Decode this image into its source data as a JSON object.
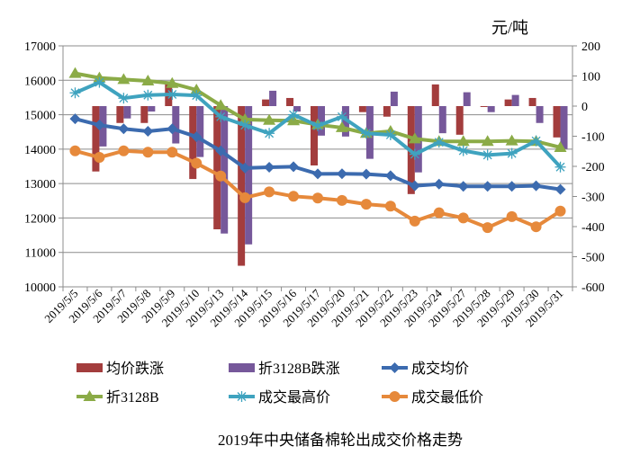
{
  "chart_data": {
    "type": "bar+line",
    "title": "2019年中央储备棉轮出成交价格走势",
    "right_axis_unit": "元/吨",
    "categories": [
      "2019/5/5",
      "2019/5/6",
      "2019/5/7",
      "2019/5/8",
      "2019/5/9",
      "2019/5/10",
      "2019/5/13",
      "2019/5/14",
      "2019/5/15",
      "2019/5/16",
      "2019/5/17",
      "2019/5/20",
      "2019/5/21",
      "2019/5/22",
      "2019/5/23",
      "2019/5/24",
      "2019/5/27",
      "2019/5/28",
      "2019/5/29",
      "2019/5/30",
      "2019/5/31"
    ],
    "left_axis": {
      "ylim": [
        10000,
        17000
      ],
      "ticks": [
        10000,
        11000,
        12000,
        13000,
        14000,
        15000,
        16000,
        17000
      ]
    },
    "right_axis": {
      "ylim": [
        -600,
        200
      ],
      "ticks": [
        -600,
        -500,
        -400,
        -300,
        -200,
        -100,
        0,
        100,
        200
      ]
    },
    "grid": true,
    "legend_position": "bottom",
    "bar_series": [
      {
        "name": "均价跌涨",
        "axis": "right",
        "color": "#A33D3D",
        "values": [
          0,
          -217,
          -56,
          -56,
          74,
          -242,
          -409,
          -530,
          22,
          27,
          -197,
          0,
          -20,
          -35,
          -292,
          72,
          -95,
          -2,
          22,
          27,
          -104
        ]
      },
      {
        "name": "折3128B跌涨",
        "axis": "right",
        "color": "#76589A",
        "values": [
          0,
          -134,
          -41,
          -18,
          -124,
          -169,
          -423,
          -459,
          51,
          -18,
          -98,
          -101,
          -175,
          48,
          -220,
          -90,
          46,
          -20,
          37,
          -56,
          -142
        ]
      }
    ],
    "line_series": [
      {
        "name": "成交均价",
        "axis": "left",
        "color": "#3C6BAF",
        "marker": "diamond",
        "values": [
          14880,
          14700,
          14590,
          14520,
          14590,
          14360,
          13950,
          13450,
          13475,
          13490,
          13280,
          13285,
          13275,
          13230,
          12935,
          12985,
          12920,
          12920,
          12920,
          12935,
          12830
        ]
      },
      {
        "name": "折3128B",
        "axis": "left",
        "color": "#8BAB47",
        "marker": "triangle",
        "values": [
          16200,
          16070,
          16025,
          15980,
          15910,
          15720,
          15270,
          14860,
          14840,
          14825,
          14710,
          14625,
          14460,
          14520,
          14300,
          14225,
          14225,
          14225,
          14240,
          14225,
          14050
        ]
      },
      {
        "name": "成交最高价",
        "axis": "left",
        "color": "#3FA3BF",
        "marker": "star",
        "values": [
          15635,
          15940,
          15480,
          15570,
          15590,
          15560,
          14940,
          14695,
          14460,
          15000,
          14680,
          14940,
          14460,
          14415,
          13850,
          14200,
          13955,
          13830,
          13875,
          14240,
          13480
        ]
      },
      {
        "name": "成交最低价",
        "axis": "left",
        "color": "#E6893B",
        "marker": "circle",
        "values": [
          13950,
          13760,
          13950,
          13910,
          13910,
          13590,
          13220,
          12590,
          12760,
          12630,
          12580,
          12510,
          12400,
          12345,
          11910,
          12150,
          12000,
          11720,
          12040,
          11745,
          12200
        ]
      }
    ]
  }
}
